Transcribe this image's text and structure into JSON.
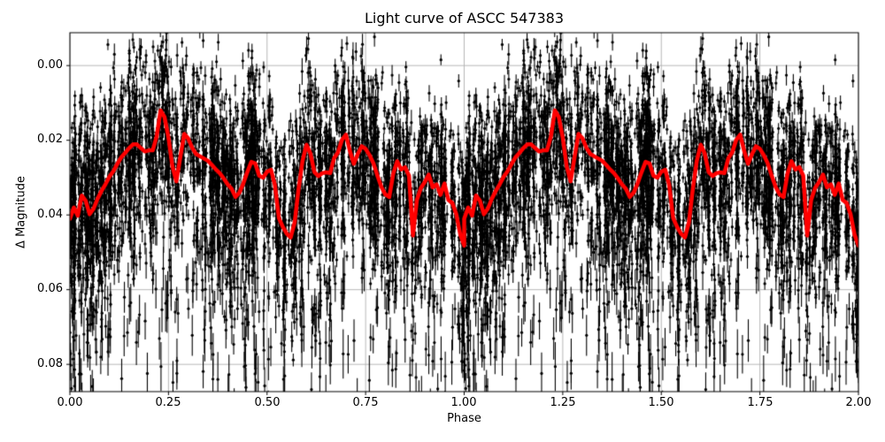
{
  "chart_data": {
    "type": "scatter",
    "variant": "phase-folded stellar light curve: black error-bar scatter with thick red smoothed trend line, magnitude axis increasing downward",
    "title": "Light curve of ASCC 547383",
    "xlabel": "Phase",
    "ylabel": "Δ Magnitude",
    "xlim": [
      0.0,
      2.0
    ],
    "ylim_top": -0.0088,
    "ylim_bottom": 0.0873,
    "y_axis_note": "magnitude axis inverted (brighter up): 0.00 at top, 0.08 near bottom",
    "axes": {
      "xticks": [
        0.0,
        0.25,
        0.5,
        0.75,
        1.0,
        1.25,
        1.5,
        1.75,
        2.0
      ],
      "xtick_labels": [
        "0.00",
        "0.25",
        "0.50",
        "0.75",
        "1.00",
        "1.25",
        "1.50",
        "1.75",
        "2.00"
      ],
      "yticks": [
        0.0,
        0.02,
        0.04,
        0.06,
        0.08
      ],
      "ytick_labels": [
        "0.00",
        "0.02",
        "0.04",
        "0.06",
        "0.08"
      ],
      "grid": true,
      "grid_color": "#b0b0b0",
      "spine_color": "#000000",
      "tick_color": "#000000",
      "tick_length": 4,
      "background": "#ffffff"
    },
    "trend": {
      "description": "smoothed mean light curve, identical pattern repeated for phase 0-1 and 1-2",
      "color": "#ff0000",
      "linewidth": 4.5,
      "cycles": 2,
      "phase_start": 0.0,
      "phase_step": 0.01,
      "mags": [
        0.041,
        0.038,
        0.0402,
        0.0348,
        0.0362,
        0.0398,
        0.0383,
        0.0357,
        0.0336,
        0.0318,
        0.0298,
        0.0283,
        0.0264,
        0.0246,
        0.0234,
        0.0221,
        0.0211,
        0.0211,
        0.0221,
        0.023,
        0.0227,
        0.0227,
        0.019,
        0.012,
        0.0138,
        0.0193,
        0.027,
        0.031,
        0.0245,
        0.0183,
        0.0195,
        0.022,
        0.0237,
        0.0243,
        0.0249,
        0.0255,
        0.0266,
        0.0278,
        0.0288,
        0.0302,
        0.0318,
        0.033,
        0.0352,
        0.034,
        0.0315,
        0.0285,
        0.0258,
        0.0262,
        0.0295,
        0.03,
        0.0284,
        0.0279,
        0.032,
        0.0408,
        0.0432,
        0.045,
        0.046,
        0.042,
        0.033,
        0.0255,
        0.0212,
        0.0235,
        0.0285,
        0.0296,
        0.0288,
        0.0286,
        0.0288,
        0.0248,
        0.0232,
        0.0199,
        0.0185,
        0.0228,
        0.0263,
        0.0237,
        0.0216,
        0.0223,
        0.024,
        0.0262,
        0.0295,
        0.0325,
        0.0345,
        0.0352,
        0.029,
        0.0256,
        0.0278,
        0.0272,
        0.0295,
        0.0455,
        0.036,
        0.0328,
        0.0312,
        0.0292,
        0.0326,
        0.0318,
        0.0346,
        0.0316,
        0.036,
        0.0368,
        0.0398,
        0.0452,
        0.0482
      ]
    },
    "scatter_gen": {
      "description": "procedural recreation of the dense black photometric scatter: vertical columns of points with error bars around the trend, duplicated in both phase cycles",
      "seed": 7,
      "cycles": 2,
      "columns_per_cycle": 560,
      "column_size_scale": 17,
      "big_column_prob": 0.06,
      "big_column_extra": 22,
      "phase_jitter": 0.004,
      "sigma_core": 0.0118,
      "faint_tail_prob": 0.2,
      "faint_tail_scale": 0.024,
      "bright_tail_prob": 0.05,
      "bright_tail_scale": 0.009,
      "err_base": 0.0013,
      "err_scale": 0.0009,
      "err_tail_factor": 0.08,
      "marker_radius": 1.65,
      "marker_color": "#000000",
      "errorbar_linewidth": 1.1
    }
  }
}
